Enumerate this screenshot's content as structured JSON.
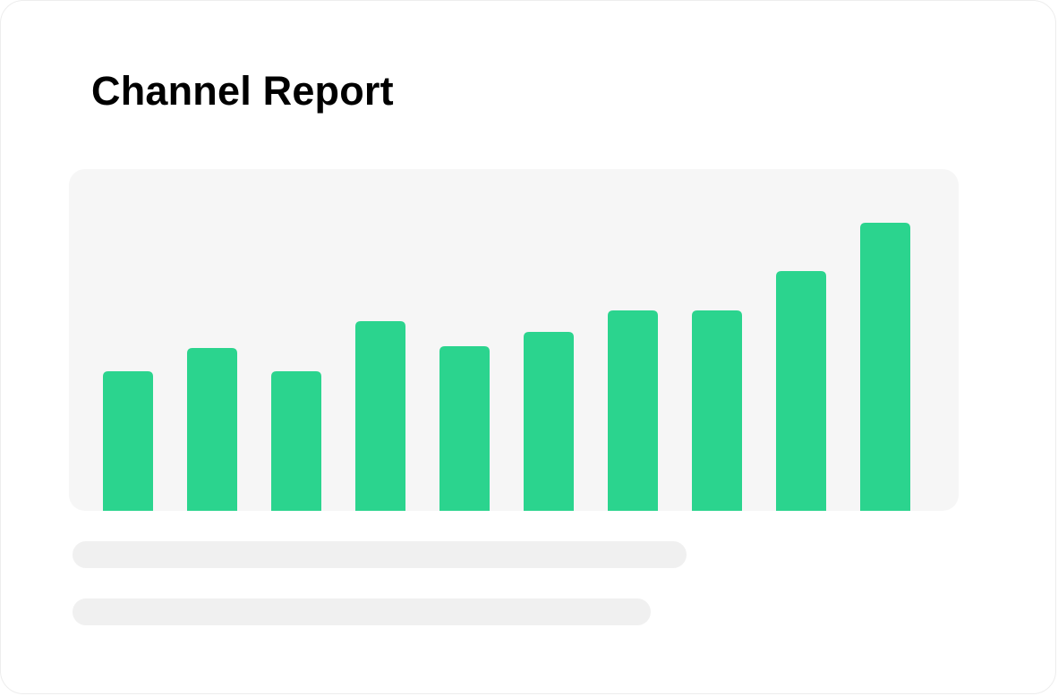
{
  "header": {
    "title": "Channel Report"
  },
  "colors": {
    "bar": "#2bd48e",
    "panel": "#f6f6f6",
    "skeleton": "#f0f0f0"
  },
  "chart_data": {
    "type": "bar",
    "values": [
      156,
      182,
      156,
      212,
      184,
      200,
      224,
      224,
      268,
      322
    ],
    "ylim": [
      0,
      382
    ],
    "grid": false,
    "legend": "none"
  }
}
